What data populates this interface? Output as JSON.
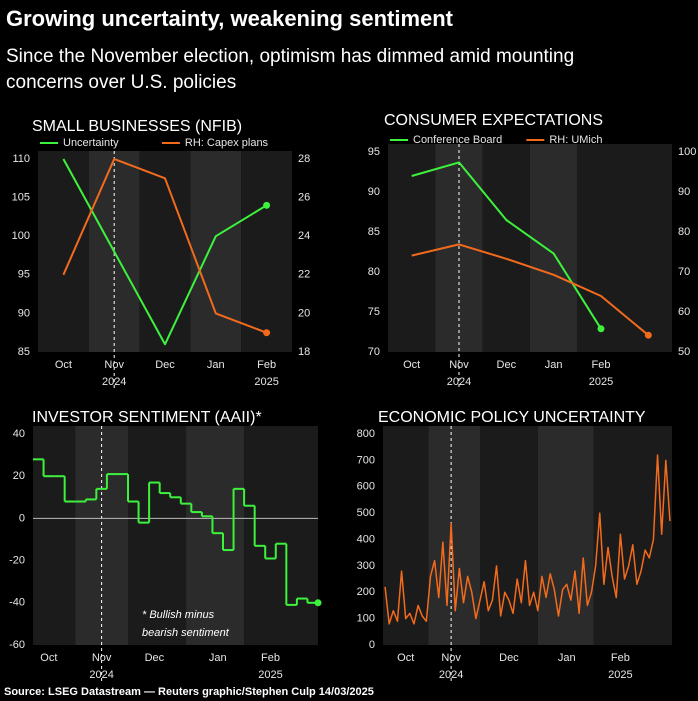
{
  "header": {
    "title": "Growing uncertainty, weakening sentiment",
    "subtitle": "Since the November election, optimism has dimmed amid mounting concerns over U.S. policies"
  },
  "source": "Source: LSEG Datastream — Reuters graphic/Stephen Culp 14/03/2025",
  "chart_data": [
    {
      "type": "line",
      "title": "SMALL BUSINESSES (NFIB)",
      "categories": [
        "Oct",
        "Nov",
        "Dec",
        "Jan",
        "Feb"
      ],
      "year_labels": [
        {
          "label": "2024",
          "category": "Nov"
        },
        {
          "label": "2025",
          "category": "Feb"
        }
      ],
      "event_line": "Nov",
      "ylim": [
        85,
        110
      ],
      "yticks": [
        85,
        90,
        95,
        100,
        105,
        110
      ],
      "y2lim": [
        18,
        28
      ],
      "y2ticks": [
        18,
        20,
        22,
        24,
        26,
        28
      ],
      "series": [
        {
          "name": "Uncertainty",
          "color": "#3df23d",
          "values": [
            110,
            98,
            86,
            100,
            104
          ]
        },
        {
          "name": "RH: Capex plans",
          "color": "#f26b1d",
          "axis": "y2",
          "values": [
            22,
            28,
            27,
            20,
            19
          ]
        }
      ]
    },
    {
      "type": "line",
      "title": "CONSUMER EXPECTATIONS",
      "categories": [
        "Oct",
        "Nov",
        "Dec",
        "Jan",
        "Feb",
        null
      ],
      "year_labels": [
        {
          "label": "2024",
          "category": "Nov"
        },
        {
          "label": "2025",
          "category": "Feb"
        }
      ],
      "event_line": "Nov",
      "ylim": [
        70,
        95
      ],
      "yticks": [
        70,
        75,
        80,
        85,
        90,
        95
      ],
      "y2lim": [
        50,
        100
      ],
      "y2ticks": [
        50,
        60,
        70,
        80,
        90,
        100
      ],
      "series": [
        {
          "name": "Conference Board",
          "color": "#3df23d",
          "values": [
            92,
            93.7,
            86.5,
            82.3,
            72.9,
            null
          ]
        },
        {
          "name": "RH: UMich",
          "color": "#f26b1d",
          "axis": "y2",
          "values": [
            74.1,
            76.9,
            73.3,
            69.3,
            64.0,
            54.2
          ]
        }
      ]
    },
    {
      "type": "step",
      "title": "INVESTOR SENTIMENT (AAII)*",
      "annotation": [
        "* Bullish minus",
        "bearish sentiment"
      ],
      "categories": [
        null,
        "Oct",
        null,
        null,
        null,
        null,
        "Nov",
        null,
        null,
        null,
        null,
        "Dec",
        null,
        null,
        null,
        null,
        null,
        "Jan",
        null,
        null,
        null,
        null,
        "Feb",
        null,
        null,
        null,
        null
      ],
      "year_labels": [
        {
          "label": "2024",
          "category": "Nov"
        },
        {
          "label": "2025",
          "category": "Feb"
        }
      ],
      "event_line": "Nov",
      "zero_line": true,
      "ylim": [
        -60,
        40
      ],
      "yticks": [
        -60,
        -40,
        -20,
        0,
        20,
        40
      ],
      "series": [
        {
          "color": "#3df23d",
          "values": [
            28,
            20,
            20,
            8,
            8,
            9,
            14,
            21,
            21,
            8,
            -2,
            17,
            12,
            10,
            7,
            3,
            1,
            -7,
            -15,
            14,
            6,
            -13,
            -19,
            -12,
            -41,
            -38,
            -40
          ]
        }
      ]
    },
    {
      "type": "line",
      "title": "ECONOMIC POLICY UNCERTAINTY",
      "categories": [
        null,
        null,
        null,
        null,
        null,
        "Oct",
        null,
        null,
        null,
        null,
        null,
        null,
        null,
        null,
        null,
        null,
        "Nov",
        null,
        null,
        null,
        null,
        null,
        null,
        null,
        null,
        null,
        null,
        null,
        null,
        null,
        "Dec",
        null,
        null,
        null,
        null,
        null,
        null,
        null,
        null,
        null,
        null,
        null,
        null,
        null,
        "Jan",
        null,
        null,
        null,
        null,
        null,
        null,
        null,
        null,
        null,
        null,
        null,
        null,
        "Feb",
        null,
        null,
        null,
        null,
        null,
        null,
        null,
        null,
        null,
        null,
        null,
        null
      ],
      "year_labels": [
        {
          "label": "2024",
          "category": "Nov"
        },
        {
          "label": "2025",
          "category": "Feb"
        }
      ],
      "event_line": "Nov",
      "no_end_dot": true,
      "ylim": [
        0,
        800
      ],
      "yticks": [
        0,
        100,
        200,
        300,
        400,
        500,
        600,
        700,
        800
      ],
      "series": [
        {
          "color": "#f26b1d",
          "values": [
            220,
            80,
            130,
            90,
            280,
            100,
            120,
            80,
            150,
            110,
            90,
            260,
            320,
            180,
            390,
            150,
            460,
            130,
            290,
            160,
            260,
            200,
            100,
            170,
            240,
            130,
            170,
            300,
            110,
            200,
            170,
            120,
            250,
            160,
            320,
            150,
            200,
            130,
            260,
            180,
            270,
            210,
            110,
            210,
            230,
            170,
            280,
            120,
            330,
            150,
            200,
            300,
            500,
            230,
            370,
            260,
            180,
            420,
            250,
            300,
            380,
            230,
            280,
            360,
            330,
            400,
            720,
            420,
            700,
            470
          ]
        }
      ]
    }
  ]
}
